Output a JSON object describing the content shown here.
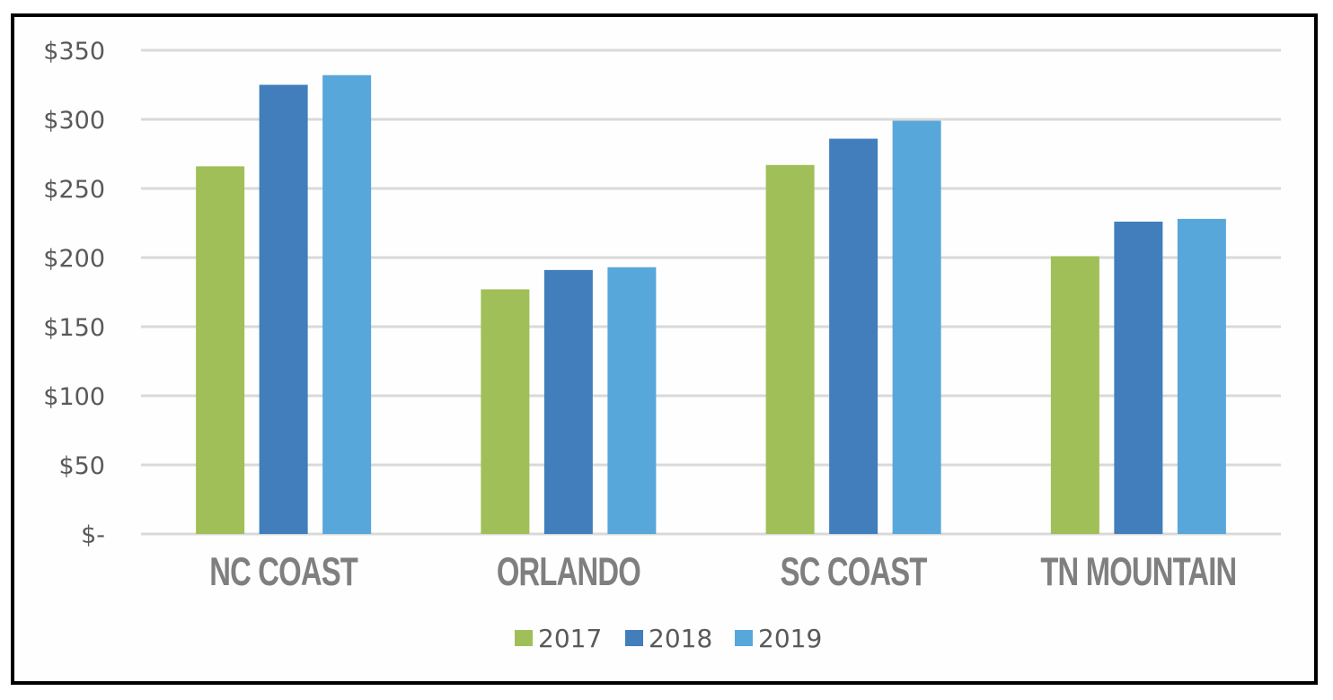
{
  "chart_data": {
    "type": "bar",
    "title": "",
    "xlabel": "",
    "ylabel": "",
    "categories": [
      "NC COAST",
      "ORLANDO",
      "SC COAST",
      "TN MOUNTAIN"
    ],
    "series": [
      {
        "name": "2017",
        "color": "#A0BF58",
        "values": [
          266,
          177,
          267,
          201
        ]
      },
      {
        "name": "2018",
        "color": "#417EBB",
        "values": [
          325,
          191,
          286,
          226
        ]
      },
      {
        "name": "2019",
        "color": "#58A7DA",
        "values": [
          332,
          193,
          299,
          228
        ]
      }
    ],
    "ylim": [
      0,
      350
    ],
    "yticks": [
      0,
      50,
      100,
      150,
      200,
      250,
      300,
      350
    ],
    "ytick_labels": [
      "$-",
      "$50",
      "$100",
      "$150",
      "$200",
      "$250",
      "$300",
      "$350"
    ],
    "grid": true,
    "gridline_color": "#D9D9D9",
    "legend_position": "bottom"
  }
}
